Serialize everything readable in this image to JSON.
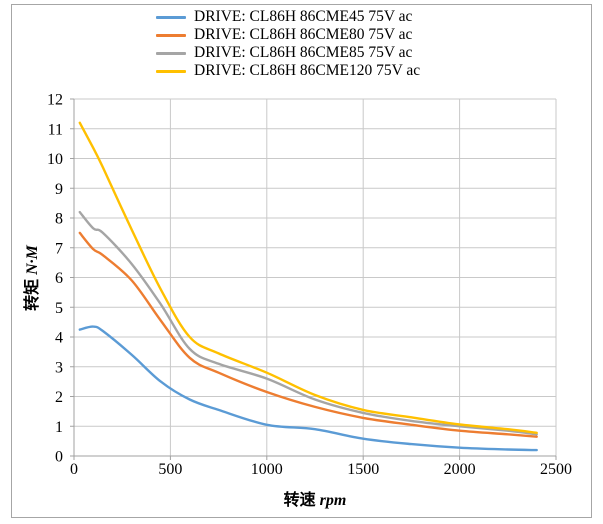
{
  "styles": {
    "frame_color": "#a6a6a6",
    "grid_color": "#c9c9c9",
    "axis_line_color": "#a0a0a0",
    "tick_label_color": "#000000",
    "background": "#ffffff"
  },
  "chart_data": {
    "type": "line",
    "title": "",
    "xlabel": "转速 rpm",
    "ylabel": "转矩 N·M",
    "xlabel_cn": "转速",
    "xlabel_unit": "rpm",
    "ylabel_cn": "转矩",
    "ylabel_unit": "N·M",
    "xlim": [
      0,
      2500
    ],
    "ylim": [
      0,
      12
    ],
    "x_ticks": [
      0,
      500,
      1000,
      1500,
      2000,
      2500
    ],
    "y_ticks": [
      0,
      1,
      2,
      3,
      4,
      5,
      6,
      7,
      8,
      9,
      10,
      11,
      12
    ],
    "grid": true,
    "legend_position": "top",
    "x": [
      30,
      100,
      150,
      300,
      450,
      600,
      750,
      1000,
      1250,
      1500,
      1750,
      2000,
      2250,
      2400
    ],
    "series": [
      {
        "name": "DRIVE: CL86H 86CME45 75V ac",
        "color": "#5B9BD5",
        "values": [
          4.25,
          4.35,
          4.2,
          3.4,
          2.5,
          1.9,
          1.55,
          1.05,
          0.9,
          0.58,
          0.4,
          0.28,
          0.22,
          0.2
        ]
      },
      {
        "name": "DRIVE: CL86H 86CME80 75V ac",
        "color": "#ED7D31",
        "values": [
          7.5,
          6.95,
          6.75,
          5.9,
          4.55,
          3.3,
          2.8,
          2.15,
          1.65,
          1.28,
          1.05,
          0.85,
          0.73,
          0.65
        ]
      },
      {
        "name": "DRIVE: CL86H 86CME85 75V ac",
        "color": "#A5A5A5",
        "values": [
          8.2,
          7.65,
          7.5,
          6.45,
          5.1,
          3.6,
          3.1,
          2.6,
          1.9,
          1.45,
          1.18,
          1.0,
          0.85,
          0.73
        ]
      },
      {
        "name": "DRIVE: CL86H 86CME120 75V ac",
        "color": "#FFC000",
        "values": [
          11.2,
          10.35,
          9.7,
          7.6,
          5.6,
          4.0,
          3.45,
          2.8,
          2.05,
          1.55,
          1.3,
          1.06,
          0.9,
          0.78
        ]
      }
    ]
  }
}
